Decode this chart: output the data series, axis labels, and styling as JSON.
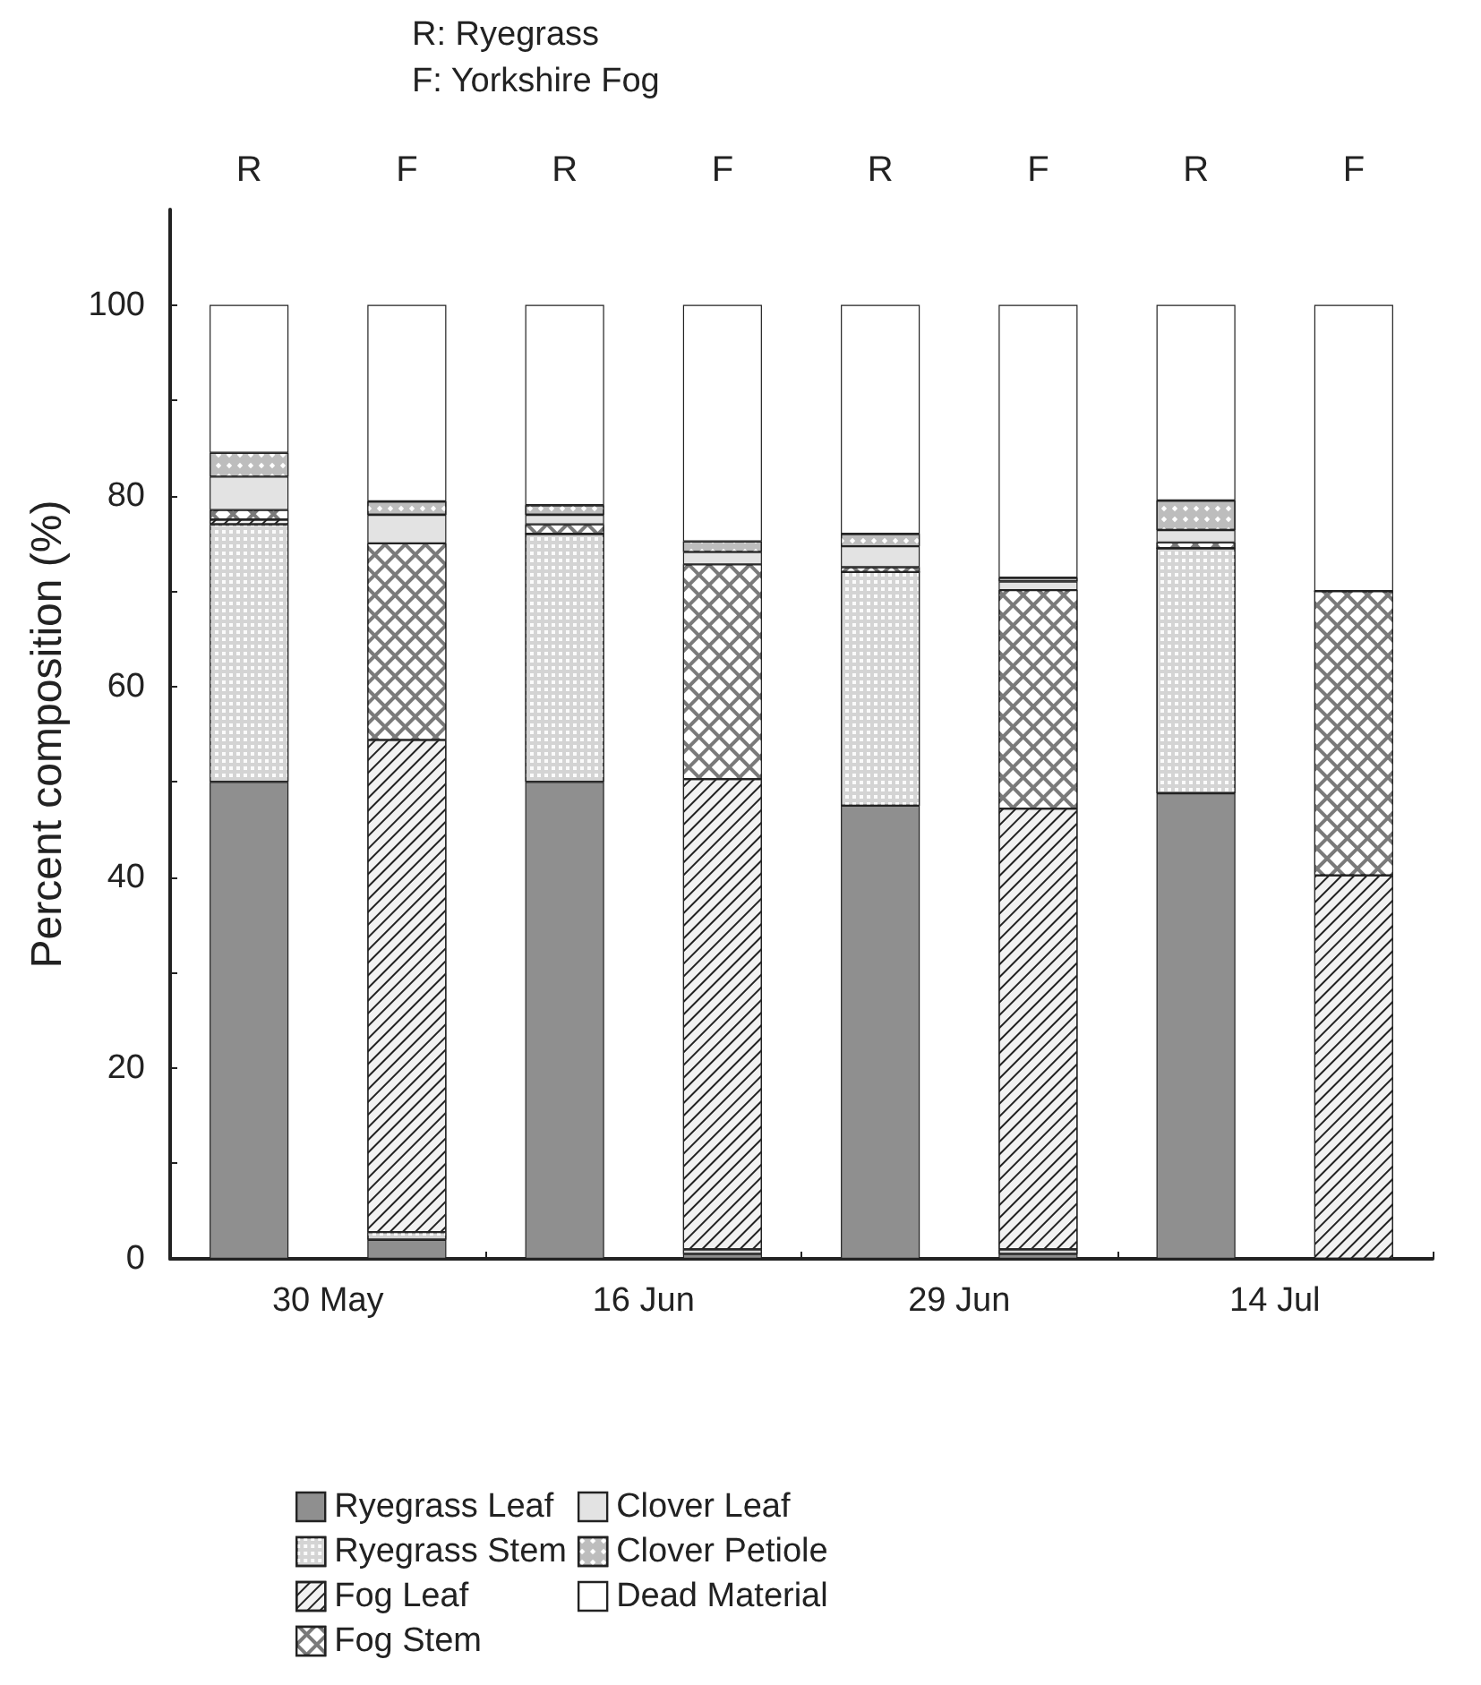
{
  "chart_data": {
    "type": "bar",
    "stacked": true,
    "categories": [
      "R",
      "F",
      "R",
      "F",
      "R",
      "F",
      "R",
      "F"
    ],
    "ylabel": "Percent composition (%)",
    "annotations": [
      "R: Ryegrass",
      "F: Yorkshire Fog",
      "30 May",
      "16 Jun",
      "29 Jun",
      "14 Jul"
    ],
    "ylim": [
      0,
      110
    ],
    "yticks": [
      0,
      {
        "value": 10,
        "label": null
      },
      20,
      {
        "value": 30,
        "label": null
      },
      40,
      {
        "value": 50,
        "label": null
      },
      60,
      {
        "value": 70,
        "label": null
      },
      80,
      {
        "value": 90,
        "label": null
      },
      100
    ],
    "grid": false,
    "legend": "bottom",
    "series": [
      {
        "name": "Ryegrass Leaf",
        "color": "#8f8f8f",
        "values": [
          50,
          2,
          50,
          0.5,
          47.5,
          0.5,
          48.8,
          0
        ]
      },
      {
        "name": "Ryegrass Stem",
        "color": "#d4d4d4",
        "values": [
          27,
          0.8,
          26,
          0.5,
          24.5,
          0.5,
          25.7,
          0
        ]
      },
      {
        "name": "Fog Leaf",
        "color": "#f2f2f2",
        "values": [
          0.5,
          51.6,
          0,
          49.3,
          0,
          46.2,
          0,
          40.2
        ]
      },
      {
        "name": "Fog Stem",
        "color": "#7a7a7a",
        "values": [
          1,
          20.6,
          1,
          22.5,
          0.5,
          22.9,
          0.6,
          29.8
        ]
      },
      {
        "name": "Clover Leaf",
        "color": "#e3e3e3",
        "values": [
          3.5,
          3,
          1,
          1.3,
          2.2,
          0.9,
          1.3,
          0
        ]
      },
      {
        "name": "Clover Petiole",
        "color": "#bdbdbd",
        "values": [
          2.5,
          1.4,
          1,
          1.1,
          1.3,
          0.4,
          3.1,
          0
        ]
      },
      {
        "name": "Dead Material",
        "color": "#ffffff",
        "values": [
          15.5,
          20.6,
          21,
          24.8,
          24,
          28.6,
          20.5,
          30
        ]
      }
    ]
  }
}
